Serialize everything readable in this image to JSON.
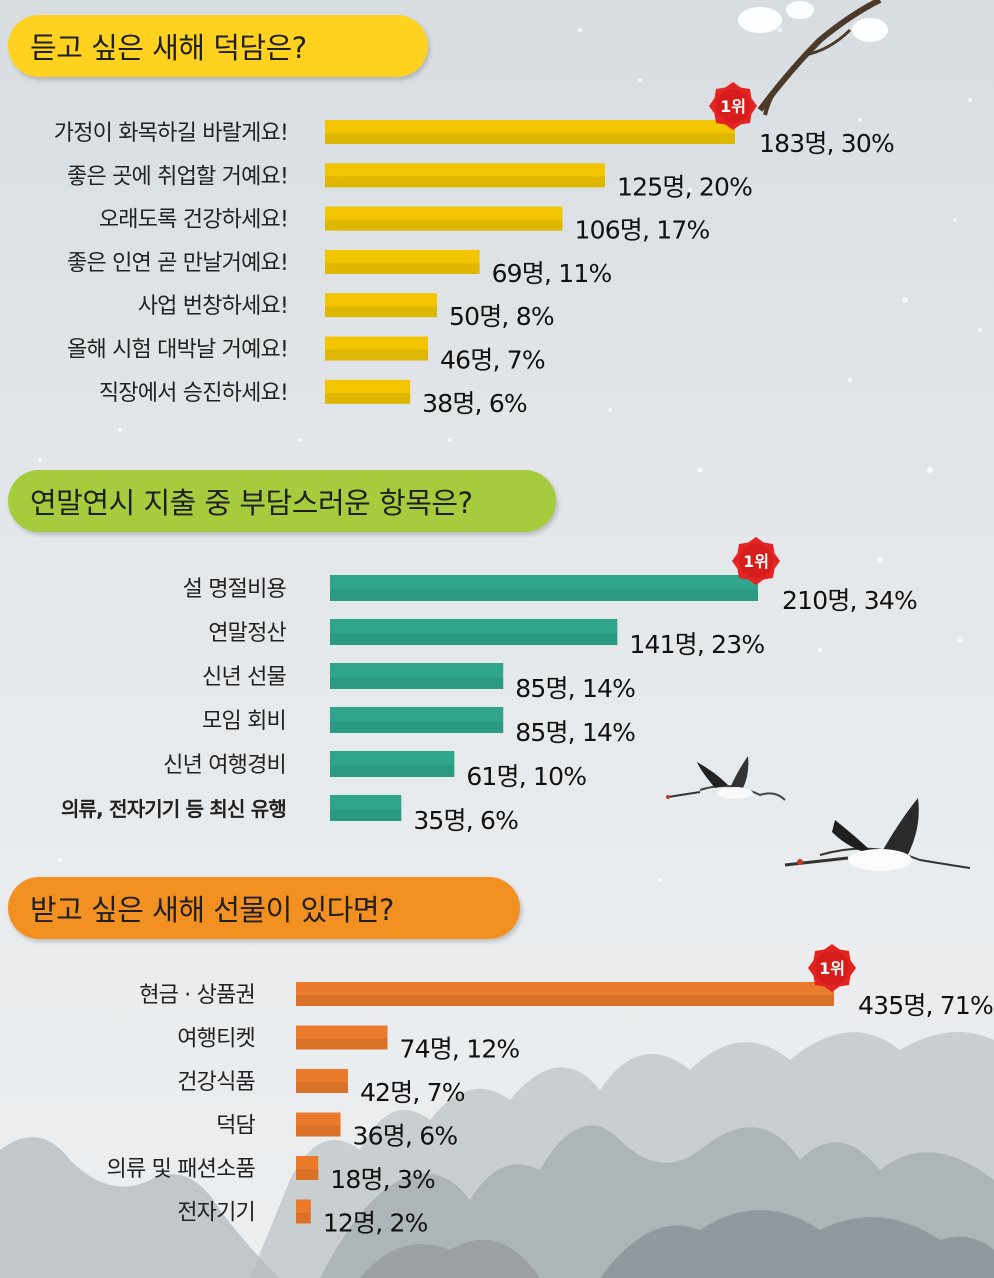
{
  "rank_badge": "1위",
  "colors": {
    "yellow": "#f2c500",
    "teal": "#2fa68c",
    "orange": "#ea7a2c",
    "pill_yellow": "#ffd21f",
    "pill_green": "#a6cb3c",
    "pill_orange": "#f29122"
  },
  "chart_data": [
    {
      "type": "bar",
      "orientation": "horizontal",
      "title": "듣고 싶은 새해 덕담은?",
      "categories": [
        "가정이 화목하길 바랄게요!",
        "좋은 곳에 취업할 거예요!",
        "오래도록 건강하세요!",
        "좋은 인연 곧 만날거예요!",
        "사업 번창하세요!",
        "올해 시험 대박날 거예요!",
        "직장에서 승진하세요!"
      ],
      "values": [
        183,
        125,
        106,
        69,
        50,
        46,
        38
      ],
      "percents": [
        30,
        20,
        17,
        11,
        8,
        7,
        6
      ],
      "value_labels": [
        "183명, 30%",
        "125명, 20%",
        "106명, 17%",
        "69명, 11%",
        "50명, 8%",
        "46명, 7%",
        "38명, 6%"
      ],
      "top_rank_index": 0
    },
    {
      "type": "bar",
      "orientation": "horizontal",
      "title": "연말연시 지출 중 부담스러운 항목은?",
      "categories": [
        "설 명절비용",
        "연말정산",
        "신년 선물",
        "모임 회비",
        "신년 여행경비",
        "의류, 전자기기 등 최신 유행"
      ],
      "values": [
        210,
        141,
        85,
        85,
        61,
        35
      ],
      "percents": [
        34,
        23,
        14,
        14,
        10,
        6
      ],
      "value_labels": [
        "210명, 34%",
        "141명, 23%",
        "85명, 14%",
        "85명, 14%",
        "61명, 10%",
        "35명, 6%"
      ],
      "top_rank_index": 0
    },
    {
      "type": "bar",
      "orientation": "horizontal",
      "title": "받고 싶은 새해 선물이 있다면?",
      "categories": [
        "현금 · 상품권",
        "여행티켓",
        "건강식품",
        "덕담",
        "의류 및 패션소품",
        "전자기기"
      ],
      "values": [
        435,
        74,
        42,
        36,
        18,
        12
      ],
      "percents": [
        71,
        12,
        7,
        6,
        3,
        2
      ],
      "value_labels": [
        "435명, 71%",
        "74명, 12%",
        "42명, 7%",
        "36명, 6%",
        "18명, 3%",
        "12명, 2%"
      ],
      "top_rank_index": 0
    }
  ]
}
